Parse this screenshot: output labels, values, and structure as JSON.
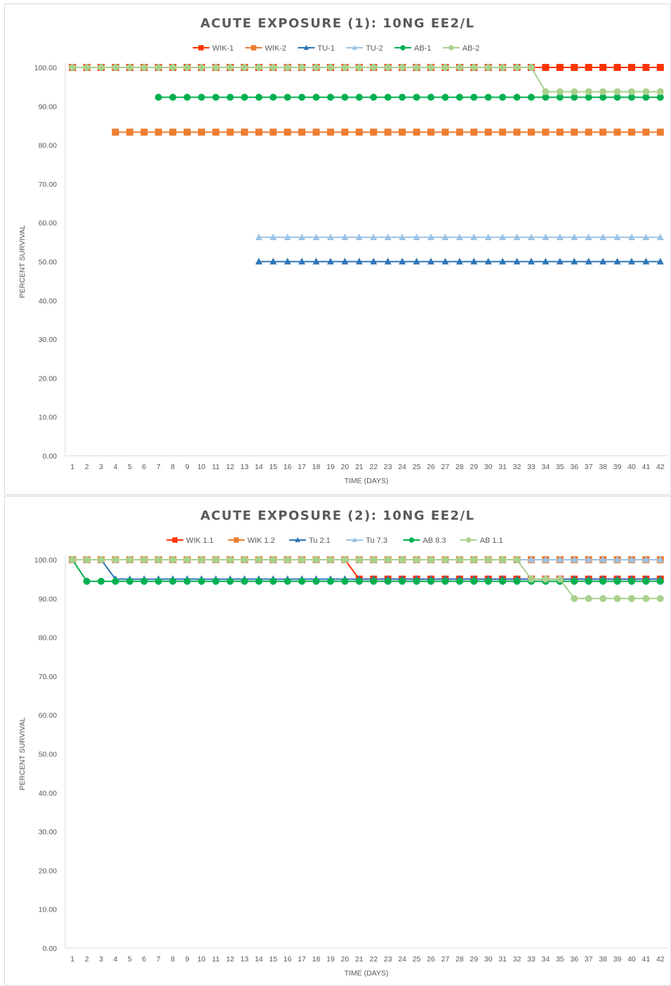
{
  "chart_data": [
    {
      "type": "line",
      "title": "ACUTE EXPOSURE (1): 10NG EE2/L",
      "xlabel": "TIME (DAYS)",
      "ylabel": "PERCENT SURVIVAL",
      "ylim": [
        0,
        100
      ],
      "yticks": [
        "0.00",
        "10.00",
        "20.00",
        "30.00",
        "40.00",
        "50.00",
        "60.00",
        "70.00",
        "80.00",
        "90.00",
        "100.00"
      ],
      "grid": false,
      "legend": "top",
      "categories": [
        1,
        2,
        3,
        4,
        5,
        6,
        7,
        8,
        9,
        10,
        11,
        12,
        13,
        14,
        15,
        16,
        17,
        18,
        19,
        20,
        21,
        22,
        23,
        24,
        25,
        26,
        27,
        28,
        29,
        30,
        31,
        32,
        33,
        34,
        35,
        36,
        37,
        38,
        39,
        40,
        41,
        42
      ],
      "series": [
        {
          "name": "WIK-1",
          "color": "#ff3300",
          "marker": "square",
          "start": 1,
          "changes": [
            [
              1,
              100
            ]
          ]
        },
        {
          "name": "WIK-2",
          "color": "#ed7d31",
          "marker": "square",
          "start": 4,
          "changes": [
            [
              4,
              83.33
            ]
          ]
        },
        {
          "name": "TU-1",
          "color": "#2e75b6",
          "marker": "triangle",
          "start": 14,
          "changes": [
            [
              14,
              50
            ]
          ]
        },
        {
          "name": "TU-2",
          "color": "#9dc3e6",
          "marker": "triangle",
          "start": 14,
          "changes": [
            [
              14,
              56.25
            ]
          ]
        },
        {
          "name": "AB-1",
          "color": "#00b050",
          "marker": "circle",
          "start": 7,
          "changes": [
            [
              7,
              92.31
            ]
          ]
        },
        {
          "name": "AB-2",
          "color": "#a9d18e",
          "marker": "circle",
          "start": 1,
          "changes": [
            [
              1,
              100
            ],
            [
              34,
              93.75
            ]
          ]
        }
      ]
    },
    {
      "type": "line",
      "title": "ACUTE EXPOSURE (2): 10NG EE2/L",
      "xlabel": "TIME (DAYS)",
      "ylabel": "PERCENT SURVIVAL",
      "ylim": [
        0,
        100
      ],
      "yticks": [
        "0.00",
        "10.00",
        "20.00",
        "30.00",
        "40.00",
        "50.00",
        "60.00",
        "70.00",
        "80.00",
        "90.00",
        "100.00"
      ],
      "grid": false,
      "legend": "top",
      "categories": [
        1,
        2,
        3,
        4,
        5,
        6,
        7,
        8,
        9,
        10,
        11,
        12,
        13,
        14,
        15,
        16,
        17,
        18,
        19,
        20,
        21,
        22,
        23,
        24,
        25,
        26,
        27,
        28,
        29,
        30,
        31,
        32,
        33,
        34,
        35,
        36,
        37,
        38,
        39,
        40,
        41,
        42
      ],
      "series": [
        {
          "name": "WIK 1.1",
          "color": "#ff3300",
          "marker": "square",
          "start": 1,
          "changes": [
            [
              1,
              100
            ],
            [
              21,
              95
            ]
          ]
        },
        {
          "name": "WIK 1.2",
          "color": "#ed7d31",
          "marker": "square",
          "start": 1,
          "changes": [
            [
              1,
              100
            ]
          ]
        },
        {
          "name": "Tu 2.1",
          "color": "#2e75b6",
          "marker": "triangle",
          "start": 1,
          "changes": [
            [
              1,
              100
            ],
            [
              4,
              95
            ]
          ]
        },
        {
          "name": "Tu 7.3",
          "color": "#9dc3e6",
          "marker": "triangle",
          "start": 1,
          "changes": [
            [
              1,
              100
            ]
          ]
        },
        {
          "name": "AB 8.3",
          "color": "#00b050",
          "marker": "circle",
          "start": 1,
          "changes": [
            [
              1,
              100
            ],
            [
              2,
              94.44
            ]
          ]
        },
        {
          "name": "AB 1.1",
          "color": "#a9d18e",
          "marker": "circle",
          "start": 1,
          "changes": [
            [
              1,
              100
            ],
            [
              33,
              95
            ],
            [
              36,
              90
            ]
          ]
        }
      ]
    }
  ]
}
